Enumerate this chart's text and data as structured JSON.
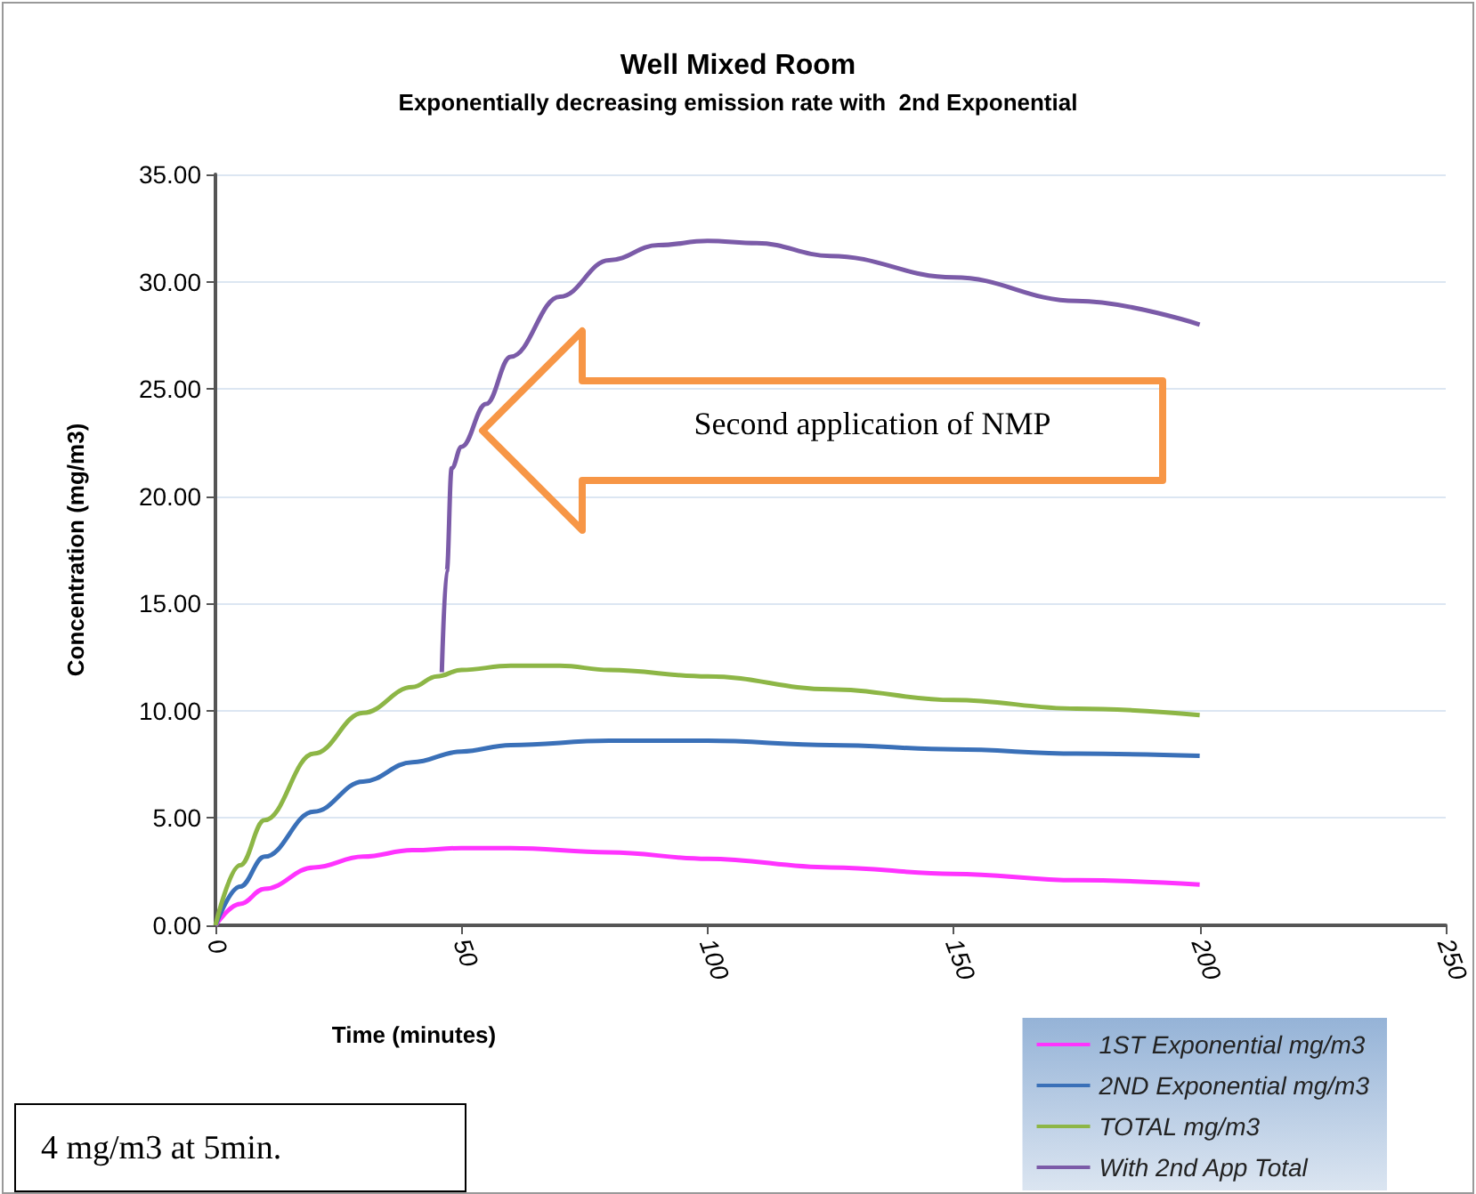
{
  "chart_data": {
    "type": "line",
    "title": "Well Mixed Room",
    "subtitle": "Exponentially decreasing emission rate with  2nd Exponential",
    "xlabel": "Time (minutes)",
    "ylabel": "Concentration (mg/m3)",
    "xlim": [
      0,
      250
    ],
    "xticks": [
      0,
      50,
      100,
      150,
      200,
      250
    ],
    "ylim": [
      0,
      35
    ],
    "yticks": [
      {
        "value": 0,
        "label": "0.00"
      },
      {
        "value": 5,
        "label": "5.00"
      },
      {
        "value": 10,
        "label": "10.00"
      },
      {
        "value": 15,
        "label": "15.00"
      },
      {
        "value": 20,
        "label": "20.00"
      },
      {
        "value": 25,
        "label": "25.00"
      },
      {
        "value": 30,
        "label": "30.00"
      },
      {
        "value": 35,
        "label": "35.00"
      }
    ],
    "grid": "y",
    "legend": "bottom right",
    "marker": "none",
    "annotations": [
      "Second application of NMP",
      "4 mg/m3 at 5min."
    ],
    "series": [
      {
        "name": "1ST Exponential mg/m3",
        "color": "#ff33ff",
        "x": [
          0,
          5,
          10,
          20,
          30,
          40,
          50,
          60,
          80,
          100,
          125,
          150,
          175,
          200
        ],
        "values": [
          0,
          1.0,
          1.7,
          2.7,
          3.2,
          3.5,
          3.6,
          3.6,
          3.4,
          3.1,
          2.7,
          2.4,
          2.1,
          1.9
        ]
      },
      {
        "name": "2ND Exponential mg/m3",
        "color": "#3a70b8",
        "x": [
          0,
          5,
          10,
          20,
          30,
          40,
          50,
          60,
          80,
          100,
          125,
          150,
          175,
          200
        ],
        "values": [
          0,
          1.8,
          3.2,
          5.3,
          6.7,
          7.6,
          8.1,
          8.4,
          8.6,
          8.6,
          8.4,
          8.2,
          8.0,
          7.9
        ]
      },
      {
        "name": "TOTAL mg/m3",
        "color": "#8db646",
        "x": [
          0,
          5,
          10,
          20,
          30,
          40,
          45,
          50,
          60,
          70,
          80,
          100,
          125,
          150,
          175,
          200
        ],
        "values": [
          0,
          2.8,
          4.9,
          8.0,
          9.9,
          11.1,
          11.6,
          11.9,
          12.1,
          12.1,
          11.9,
          11.6,
          11.0,
          10.5,
          10.1,
          9.8
        ]
      },
      {
        "name": "With 2nd App Total",
        "color": "#7b5ba8",
        "x": [
          46,
          47,
          48,
          50,
          55,
          60,
          70,
          80,
          90,
          100,
          110,
          125,
          150,
          175,
          200
        ],
        "values": [
          11.8,
          16.5,
          21.3,
          22.3,
          24.3,
          26.5,
          29.3,
          31.0,
          31.7,
          31.9,
          31.8,
          31.2,
          30.2,
          29.1,
          28.0
        ]
      }
    ]
  }
}
